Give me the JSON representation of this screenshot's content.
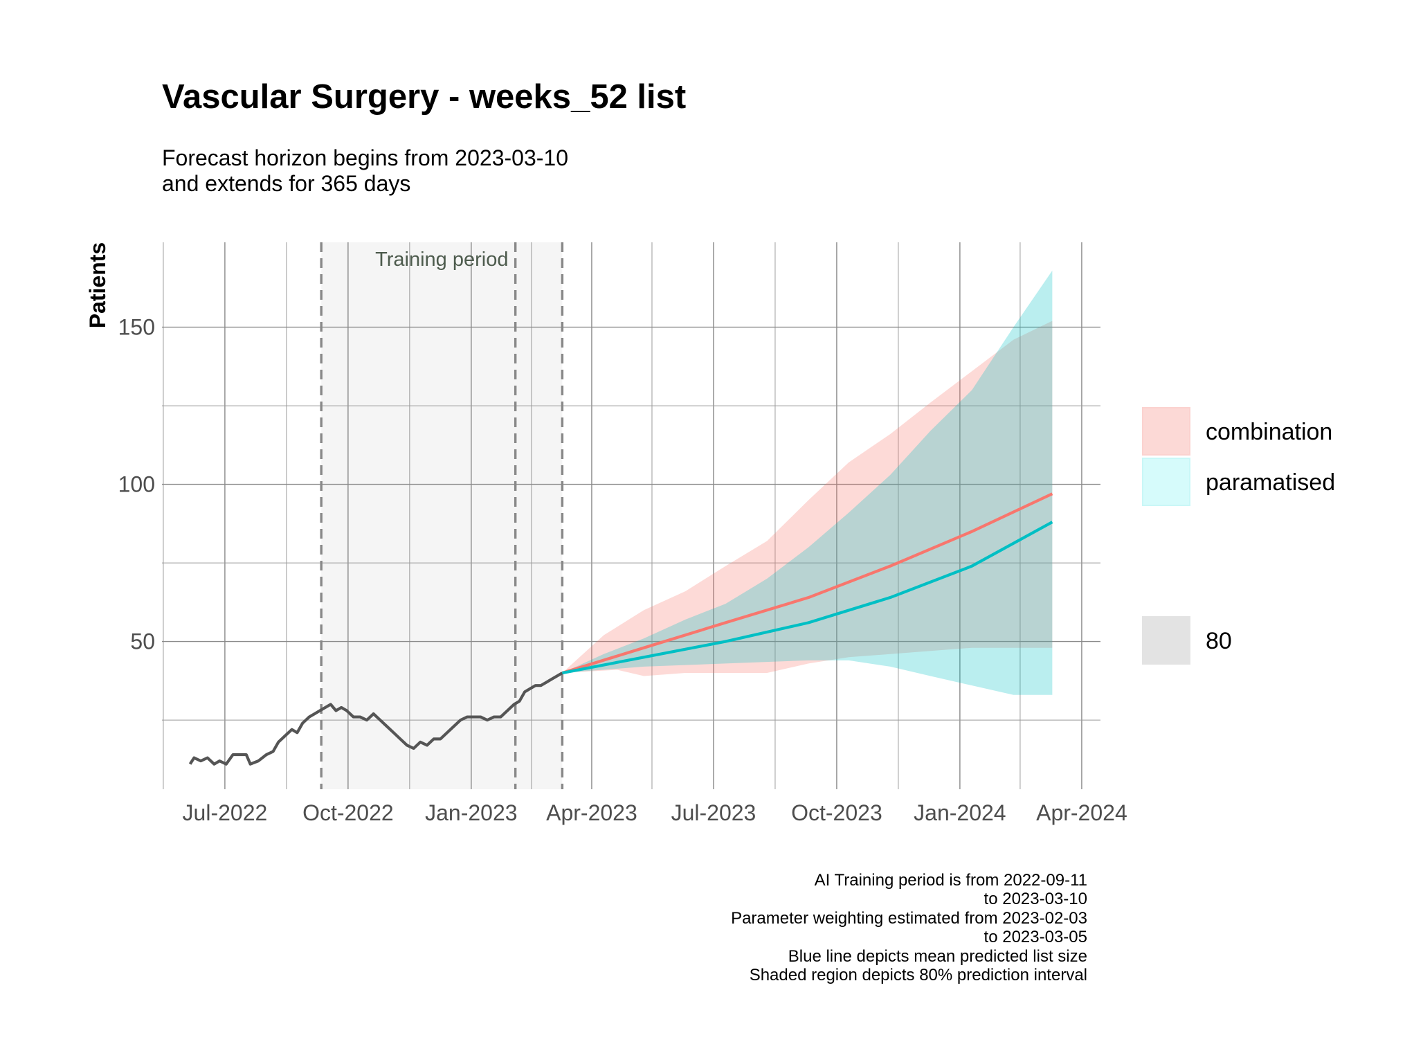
{
  "title": "Vascular Surgery - weeks_52 list",
  "subtitle": [
    "Forecast horizon begins from 2023-03-10",
    "and extends for 365 days"
  ],
  "caption": [
    "AI Training period is from 2022-09-11",
    "to 2023-03-10",
    "Parameter weighting estimated from 2023-02-03",
    "to 2023-03-05",
    "Blue line depicts mean predicted list size",
    "Shaded region depicts 80% prediction interval"
  ],
  "legend": {
    "series": [
      {
        "label": "combination",
        "color": "#F8766D"
      },
      {
        "label": "paramatised",
        "color": "#00BFC4"
      }
    ],
    "level_label": "80"
  },
  "chart_data": {
    "type": "line",
    "xlabel": "",
    "ylabel": "Patients",
    "x_tick_labels": [
      "Jul-2022",
      "Oct-2022",
      "Jan-2023",
      "Apr-2023",
      "Jul-2023",
      "Oct-2023",
      "Jan-2024",
      "Apr-2024"
    ],
    "x_ticks": [
      "2022-07-01",
      "2022-10-01",
      "2023-01-01",
      "2023-04-01",
      "2023-07-01",
      "2023-10-01",
      "2024-01-01",
      "2024-04-01"
    ],
    "xlim": [
      "2022-05-15",
      "2024-04-15"
    ],
    "y_ticks": [
      50,
      100,
      150
    ],
    "ylim": [
      3,
      177
    ],
    "grid": true,
    "legend_position": "right",
    "training_label": "Training period",
    "training_period": [
      "2022-09-11",
      "2023-03-10"
    ],
    "vlines": [
      "2022-09-11",
      "2023-02-03",
      "2023-03-10"
    ],
    "history": {
      "name": "",
      "color": "#555555",
      "points": [
        [
          "2022-06-05",
          11
        ],
        [
          "2022-06-08",
          13
        ],
        [
          "2022-06-13",
          12
        ],
        [
          "2022-06-18",
          13
        ],
        [
          "2022-06-23",
          11
        ],
        [
          "2022-06-27",
          12
        ],
        [
          "2022-07-02",
          11
        ],
        [
          "2022-07-07",
          14
        ],
        [
          "2022-07-12",
          14
        ],
        [
          "2022-07-17",
          14
        ],
        [
          "2022-07-20",
          11
        ],
        [
          "2022-07-26",
          12
        ],
        [
          "2022-08-01",
          14
        ],
        [
          "2022-08-06",
          15
        ],
        [
          "2022-08-10",
          18
        ],
        [
          "2022-08-15",
          20
        ],
        [
          "2022-08-20",
          22
        ],
        [
          "2022-08-24",
          21
        ],
        [
          "2022-08-28",
          24
        ],
        [
          "2022-09-02",
          26
        ],
        [
          "2022-09-06",
          27
        ],
        [
          "2022-09-10",
          28
        ],
        [
          "2022-09-14",
          29
        ],
        [
          "2022-09-18",
          30
        ],
        [
          "2022-09-22",
          28
        ],
        [
          "2022-09-26",
          29
        ],
        [
          "2022-09-30",
          28
        ],
        [
          "2022-10-05",
          26
        ],
        [
          "2022-10-10",
          26
        ],
        [
          "2022-10-15",
          25
        ],
        [
          "2022-10-20",
          27
        ],
        [
          "2022-10-25",
          25
        ],
        [
          "2022-10-30",
          23
        ],
        [
          "2022-11-04",
          21
        ],
        [
          "2022-11-09",
          19
        ],
        [
          "2022-11-14",
          17
        ],
        [
          "2022-11-19",
          16
        ],
        [
          "2022-11-24",
          18
        ],
        [
          "2022-11-29",
          17
        ],
        [
          "2022-12-04",
          19
        ],
        [
          "2022-12-09",
          19
        ],
        [
          "2022-12-14",
          21
        ],
        [
          "2022-12-19",
          23
        ],
        [
          "2022-12-24",
          25
        ],
        [
          "2022-12-29",
          26
        ],
        [
          "2023-01-03",
          26
        ],
        [
          "2023-01-08",
          26
        ],
        [
          "2023-01-13",
          25
        ],
        [
          "2023-01-18",
          26
        ],
        [
          "2023-01-23",
          26
        ],
        [
          "2023-01-28",
          28
        ],
        [
          "2023-02-02",
          30
        ],
        [
          "2023-02-06",
          31
        ],
        [
          "2023-02-10",
          34
        ],
        [
          "2023-02-14",
          35
        ],
        [
          "2023-02-18",
          36
        ],
        [
          "2023-02-22",
          36
        ],
        [
          "2023-02-26",
          37
        ],
        [
          "2023-03-02",
          38
        ],
        [
          "2023-03-06",
          39
        ],
        [
          "2023-03-10",
          40
        ]
      ]
    },
    "series": [
      {
        "name": "combination",
        "color": "#F8766D",
        "mean": [
          [
            "2023-03-10",
            40
          ],
          [
            "2023-05-10",
            48
          ],
          [
            "2023-07-10",
            56
          ],
          [
            "2023-09-10",
            64
          ],
          [
            "2023-11-10",
            74
          ],
          [
            "2024-01-10",
            85
          ],
          [
            "2024-03-10",
            97
          ]
        ],
        "lower": [
          [
            "2023-03-10",
            40
          ],
          [
            "2023-04-20",
            41
          ],
          [
            "2023-05-10",
            39
          ],
          [
            "2023-06-10",
            40
          ],
          [
            "2023-07-10",
            40
          ],
          [
            "2023-08-10",
            40
          ],
          [
            "2023-09-10",
            43
          ],
          [
            "2023-10-10",
            45
          ],
          [
            "2023-11-10",
            46
          ],
          [
            "2023-12-10",
            47
          ],
          [
            "2024-01-10",
            48
          ],
          [
            "2024-02-10",
            48
          ],
          [
            "2024-03-10",
            48
          ]
        ],
        "upper": [
          [
            "2023-03-10",
            40
          ],
          [
            "2023-04-10",
            52
          ],
          [
            "2023-05-10",
            60
          ],
          [
            "2023-06-10",
            66
          ],
          [
            "2023-07-10",
            74
          ],
          [
            "2023-08-10",
            82
          ],
          [
            "2023-09-10",
            95
          ],
          [
            "2023-10-10",
            107
          ],
          [
            "2023-11-10",
            116
          ],
          [
            "2023-12-10",
            126
          ],
          [
            "2024-01-10",
            136
          ],
          [
            "2024-02-10",
            146
          ],
          [
            "2024-03-10",
            152
          ]
        ]
      },
      {
        "name": "paramatised",
        "color": "#00BFC4",
        "mean": [
          [
            "2023-03-10",
            40
          ],
          [
            "2023-05-10",
            45
          ],
          [
            "2023-07-10",
            50
          ],
          [
            "2023-09-10",
            56
          ],
          [
            "2023-11-10",
            64
          ],
          [
            "2024-01-10",
            74
          ],
          [
            "2024-03-10",
            88
          ]
        ],
        "lower": [
          [
            "2023-03-10",
            40
          ],
          [
            "2023-05-10",
            42
          ],
          [
            "2023-07-10",
            43
          ],
          [
            "2023-09-10",
            44
          ],
          [
            "2023-10-10",
            44
          ],
          [
            "2023-11-10",
            42
          ],
          [
            "2023-12-10",
            39
          ],
          [
            "2024-01-10",
            36
          ],
          [
            "2024-02-10",
            33
          ],
          [
            "2024-03-10",
            33
          ]
        ],
        "upper": [
          [
            "2023-03-10",
            40
          ],
          [
            "2023-04-10",
            46
          ],
          [
            "2023-05-10",
            51
          ],
          [
            "2023-06-10",
            57
          ],
          [
            "2023-07-10",
            62
          ],
          [
            "2023-08-10",
            70
          ],
          [
            "2023-09-10",
            80
          ],
          [
            "2023-10-10",
            91
          ],
          [
            "2023-11-10",
            103
          ],
          [
            "2023-12-10",
            117
          ],
          [
            "2024-01-10",
            130
          ],
          [
            "2024-02-10",
            150
          ],
          [
            "2024-03-10",
            168
          ]
        ]
      }
    ]
  }
}
